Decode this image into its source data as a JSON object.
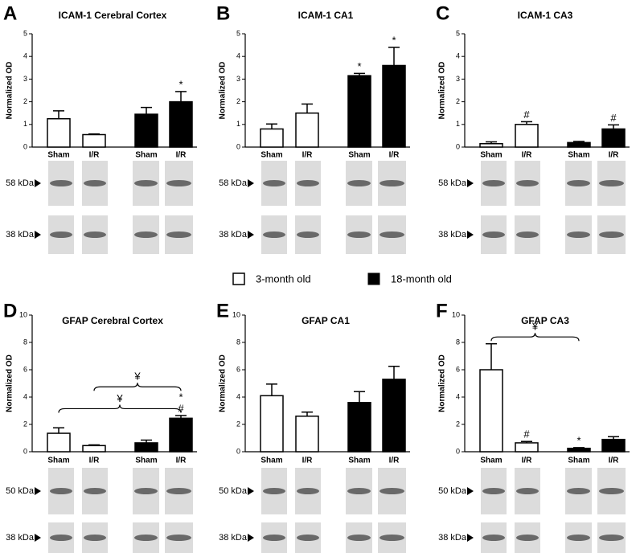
{
  "legend": [
    {
      "name": "3-month old",
      "color": "#ffffff"
    },
    {
      "name": "18-month old",
      "color": "#000000"
    }
  ],
  "chart_data": [
    {
      "type": "bar",
      "panel": "A",
      "title": "ICAM-1 Cerebral Cortex",
      "y_label": "Normalized OD",
      "categories": [
        "Sham",
        "I/R",
        "Sham",
        "I/R"
      ],
      "values": [
        1.25,
        0.55,
        1.45,
        2.0
      ],
      "errors": [
        0.35,
        0.03,
        0.3,
        0.45
      ],
      "colors": [
        "#ffffff",
        "#ffffff",
        "#000000",
        "#000000"
      ],
      "markers": [
        [],
        [],
        [],
        [
          "*"
        ]
      ],
      "brackets": [],
      "ylim": [
        0,
        5
      ],
      "yticks": [
        0,
        1,
        2,
        3,
        4,
        5
      ],
      "blots": [
        "58 kDa",
        "38 kDa"
      ]
    },
    {
      "type": "bar",
      "panel": "B",
      "title": "ICAM-1 CA1",
      "y_label": "Normalized OD",
      "categories": [
        "Sham",
        "I/R",
        "Sham",
        "I/R"
      ],
      "values": [
        0.8,
        1.5,
        3.15,
        3.6
      ],
      "errors": [
        0.22,
        0.4,
        0.1,
        0.8
      ],
      "colors": [
        "#ffffff",
        "#ffffff",
        "#000000",
        "#000000"
      ],
      "markers": [
        [],
        [],
        [
          "*"
        ],
        [
          "*"
        ]
      ],
      "brackets": [],
      "ylim": [
        0,
        5
      ],
      "yticks": [
        0,
        1,
        2,
        3,
        4,
        5
      ],
      "blots": [
        "58 kDa",
        "38 kDa"
      ]
    },
    {
      "type": "bar",
      "panel": "C",
      "title": "ICAM-1 CA3",
      "y_label": "Normalized OD",
      "categories": [
        "Sham",
        "I/R",
        "Sham",
        "I/R"
      ],
      "values": [
        0.15,
        1.0,
        0.2,
        0.8
      ],
      "errors": [
        0.08,
        0.12,
        0.05,
        0.18
      ],
      "colors": [
        "#ffffff",
        "#ffffff",
        "#000000",
        "#000000"
      ],
      "markers": [
        [],
        [
          "#"
        ],
        [],
        [
          "#"
        ]
      ],
      "brackets": [],
      "ylim": [
        0,
        5
      ],
      "yticks": [
        0,
        1,
        2,
        3,
        4,
        5
      ],
      "blots": [
        "58 kDa",
        "38 kDa"
      ]
    },
    {
      "type": "bar",
      "panel": "D",
      "title": "GFAP Cerebral Cortex",
      "y_label": "Normalized OD",
      "categories": [
        "Sham",
        "I/R",
        "Sham",
        "I/R"
      ],
      "values": [
        1.35,
        0.45,
        0.65,
        2.45
      ],
      "errors": [
        0.4,
        0.05,
        0.2,
        0.2
      ],
      "colors": [
        "#ffffff",
        "#ffffff",
        "#000000",
        "#000000"
      ],
      "markers": [
        [],
        [],
        [],
        [
          "*",
          "#"
        ]
      ],
      "brackets": [
        {
          "text": "¥",
          "from": 0,
          "to": 3
        },
        {
          "text": "¥",
          "from": 1,
          "to": 3
        }
      ],
      "ylim": [
        0,
        10
      ],
      "yticks": [
        0,
        2,
        4,
        6,
        8,
        10
      ],
      "blots": [
        "50 kDa",
        "38 kDa"
      ]
    },
    {
      "type": "bar",
      "panel": "E",
      "title": "GFAP CA1",
      "y_label": "Normalized OD",
      "categories": [
        "Sham",
        "I/R",
        "Sham",
        "I/R"
      ],
      "values": [
        4.1,
        2.6,
        3.6,
        5.3
      ],
      "errors": [
        0.85,
        0.3,
        0.8,
        0.95
      ],
      "colors": [
        "#ffffff",
        "#ffffff",
        "#000000",
        "#000000"
      ],
      "markers": [
        [],
        [],
        [],
        []
      ],
      "brackets": [],
      "ylim": [
        0,
        10
      ],
      "yticks": [
        0,
        2,
        4,
        6,
        8,
        10
      ],
      "blots": [
        "50 kDa",
        "38 kDa"
      ]
    },
    {
      "type": "bar",
      "panel": "F",
      "title": "GFAP  CA3",
      "y_label": "Normalized OD",
      "categories": [
        "Sham",
        "I/R",
        "Sham",
        "I/R"
      ],
      "values": [
        6.0,
        0.65,
        0.25,
        0.9
      ],
      "errors": [
        1.9,
        0.1,
        0.05,
        0.2
      ],
      "colors": [
        "#ffffff",
        "#ffffff",
        "#000000",
        "#000000"
      ],
      "markers": [
        [],
        [
          "#"
        ],
        [
          "*"
        ],
        []
      ],
      "brackets": [
        {
          "text": "¥",
          "from": 0,
          "to": 2
        }
      ],
      "ylim": [
        0,
        10
      ],
      "yticks": [
        0,
        2,
        4,
        6,
        8,
        10
      ],
      "blots": [
        "50 kDa",
        "38 kDa"
      ]
    }
  ]
}
